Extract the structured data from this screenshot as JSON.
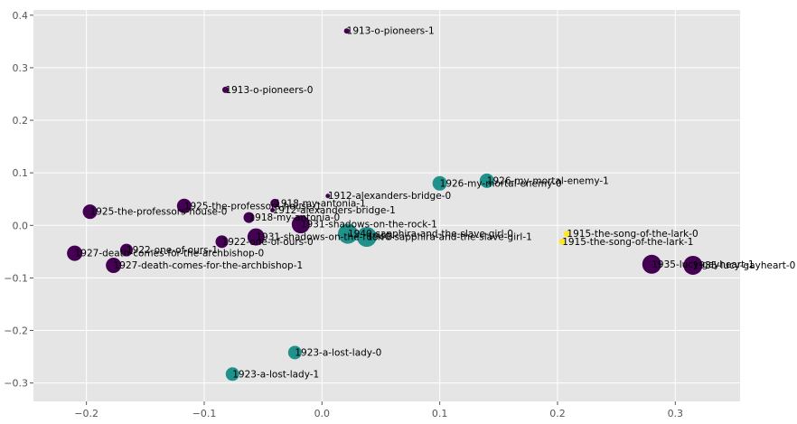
{
  "chart_data": {
    "type": "scatter",
    "title": "",
    "xlabel": "",
    "ylabel": "",
    "xlim": [
      -0.245,
      0.355
    ],
    "ylim": [
      -0.335,
      0.41
    ],
    "xticks": [
      -0.2,
      -0.1,
      0.0,
      0.1,
      0.2,
      0.3
    ],
    "xtick_labels": [
      "−0.2",
      "−0.1",
      "0.0",
      "0.1",
      "0.2",
      "0.3"
    ],
    "yticks": [
      -0.3,
      -0.2,
      -0.1,
      0.0,
      0.1,
      0.2,
      0.3,
      0.4
    ],
    "ytick_labels": [
      "−0.3",
      "−0.2",
      "−0.1",
      "0.0",
      "0.1",
      "0.2",
      "0.3",
      "0.4"
    ],
    "grid": true,
    "legend": "none",
    "colors": {
      "dark_purple": "#440154",
      "teal": "#21918c",
      "yellow": "#fde725",
      "background": "#e5e5e5",
      "grid": "#ffffff"
    },
    "points": [
      {
        "label": "1913-o-pioneers-1",
        "x": 0.021,
        "y": 0.37,
        "size": 3,
        "color": "#440154"
      },
      {
        "label": "1913-o-pioneers-0",
        "x": -0.082,
        "y": 0.258,
        "size": 3.5,
        "color": "#440154"
      },
      {
        "label": "1912-alexanders-bridge-0",
        "x": 0.005,
        "y": 0.056,
        "size": 2.5,
        "color": "#440154"
      },
      {
        "label": "1912-alexanders-bridge-1",
        "x": -0.042,
        "y": 0.029,
        "size": 2.5,
        "color": "#440154"
      },
      {
        "label": "1918-my-antonia-1",
        "x": -0.04,
        "y": 0.042,
        "size": 5,
        "color": "#440154"
      },
      {
        "label": "1918-my-antonia-0",
        "x": -0.062,
        "y": 0.015,
        "size": 6,
        "color": "#440154"
      },
      {
        "label": "1925-the-professors-house-0",
        "x": -0.197,
        "y": 0.026,
        "size": 8,
        "color": "#440154"
      },
      {
        "label": "1925-the-professors-house-1",
        "x": -0.117,
        "y": 0.037,
        "size": 8,
        "color": "#440154"
      },
      {
        "label": "1931-shadows-on-the-rock-1",
        "x": -0.018,
        "y": 0.002,
        "size": 10,
        "color": "#440154"
      },
      {
        "label": "1931-shadows-on-the-rock-0",
        "x": -0.056,
        "y": -0.022,
        "size": 9.5,
        "color": "#440154"
      },
      {
        "label": "1922-one-of-ours-1",
        "x": -0.166,
        "y": -0.047,
        "size": 7,
        "color": "#440154"
      },
      {
        "label": "1922-one-of-ours-0",
        "x": -0.085,
        "y": -0.031,
        "size": 7,
        "color": "#440154"
      },
      {
        "label": "1927-death-comes-for-the-archbishop-0",
        "x": -0.21,
        "y": -0.053,
        "size": 8.5,
        "color": "#440154"
      },
      {
        "label": "1927-death-comes-for-the-archbishop-1",
        "x": -0.177,
        "y": -0.076,
        "size": 8.5,
        "color": "#440154"
      },
      {
        "label": "1935-lucy-gayheart-1",
        "x": 0.28,
        "y": -0.074,
        "size": 10.5,
        "color": "#440154"
      },
      {
        "label": "1935-lucy-gayheart-0",
        "x": 0.315,
        "y": -0.076,
        "size": 10.5,
        "color": "#440154"
      },
      {
        "label": "1926-my-mortal-enemy-0",
        "x": 0.1,
        "y": 0.08,
        "size": 8,
        "color": "#21918c"
      },
      {
        "label": "1926-my-mortal-enemy-1",
        "x": 0.14,
        "y": 0.085,
        "size": 8,
        "color": "#21918c"
      },
      {
        "label": "1940-sapphira-and-the-slave-girl-0",
        "x": 0.022,
        "y": -0.016,
        "size": 11,
        "color": "#21918c"
      },
      {
        "label": "1940-sapphira-and-the-slave-girl-1",
        "x": 0.038,
        "y": -0.022,
        "size": 11,
        "color": "#21918c"
      },
      {
        "label": "1923-a-lost-lady-0",
        "x": -0.023,
        "y": -0.242,
        "size": 7.5,
        "color": "#21918c"
      },
      {
        "label": "1923-a-lost-lady-1",
        "x": -0.076,
        "y": -0.283,
        "size": 7.5,
        "color": "#21918c"
      },
      {
        "label": "1915-the-song-of-the-lark-0",
        "x": 0.208,
        "y": -0.016,
        "size": 3.5,
        "color": "#fde725"
      },
      {
        "label": "1915-the-song-of-the-lark-1",
        "x": 0.204,
        "y": -0.031,
        "size": 3.5,
        "color": "#fde725"
      }
    ]
  }
}
